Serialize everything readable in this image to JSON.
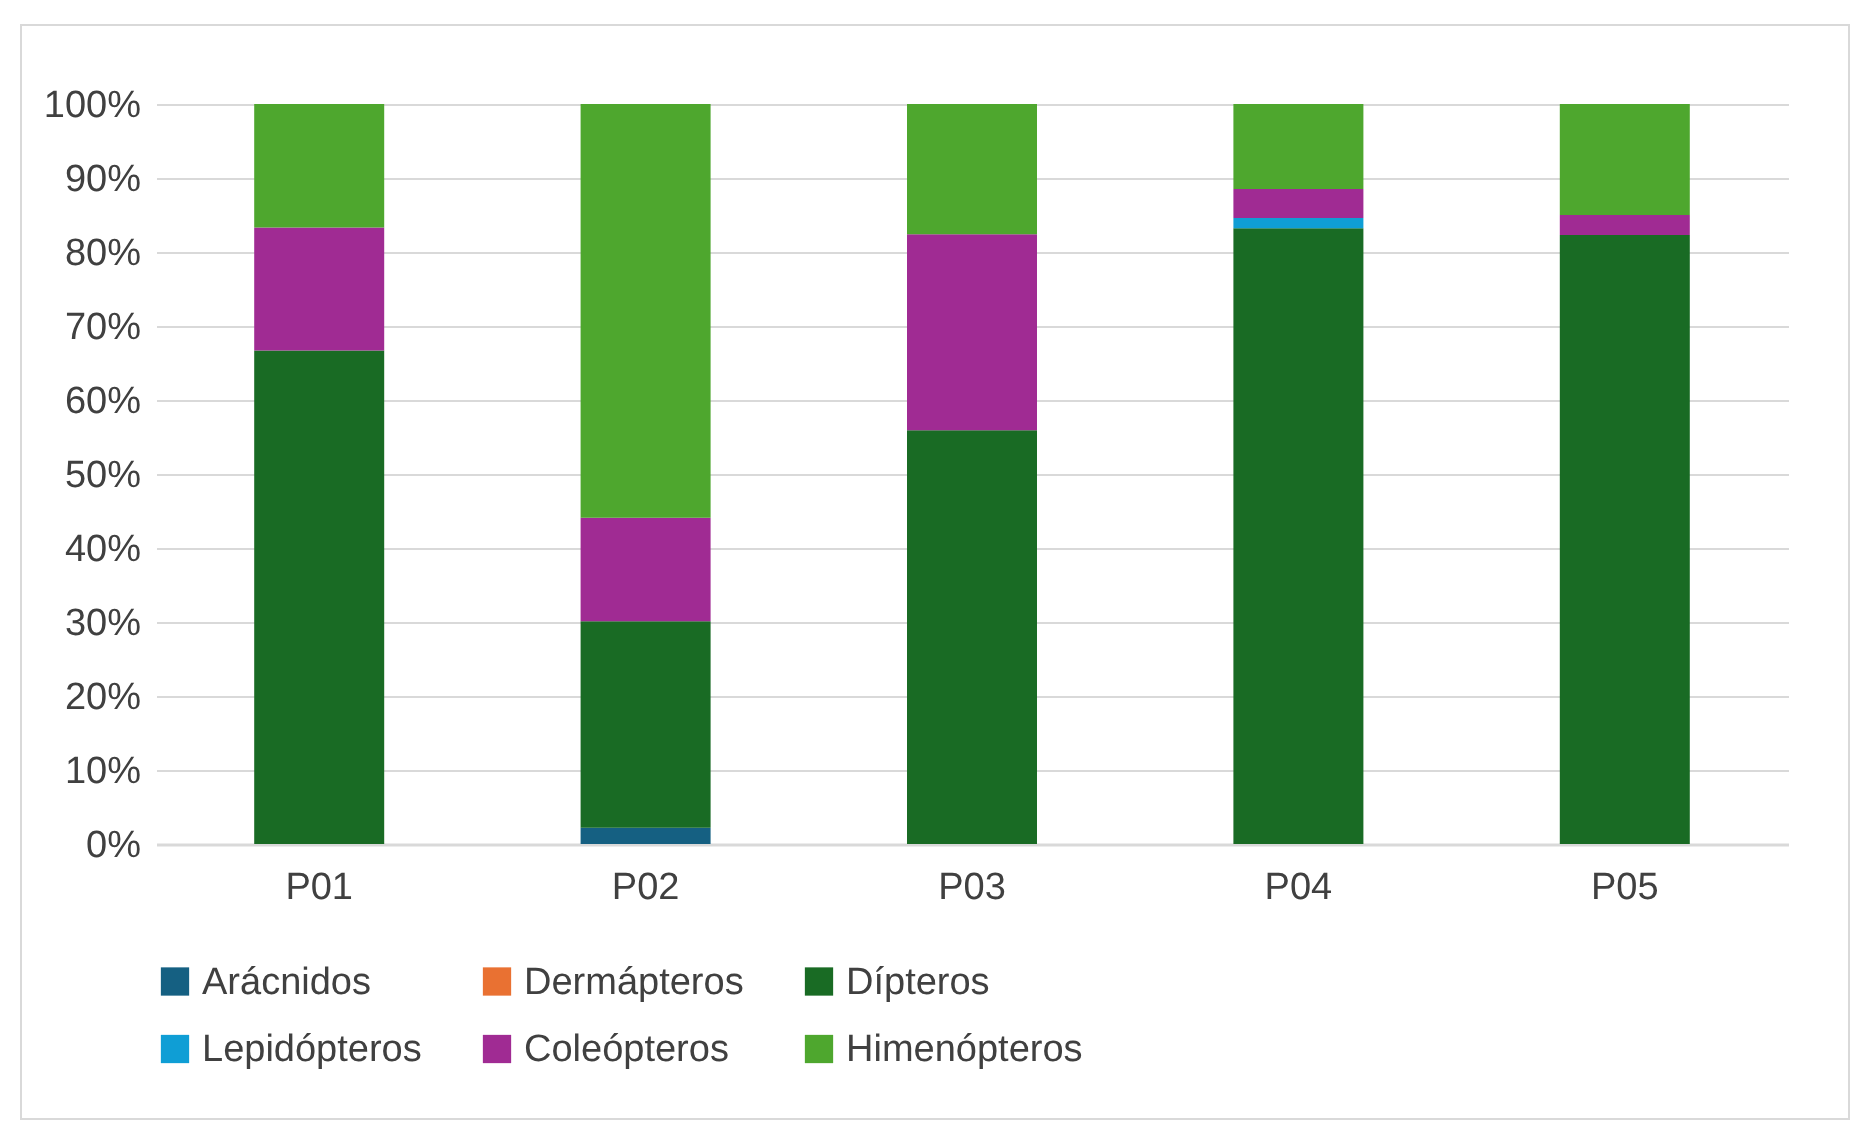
{
  "chart_data": {
    "type": "bar",
    "stacked": true,
    "categories": [
      "P01",
      "P02",
      "P03",
      "P04",
      "P05"
    ],
    "series": [
      {
        "name": "Arácnidos",
        "color": "#156082",
        "values": [
          0,
          2.2,
          0,
          0,
          0
        ]
      },
      {
        "name": "Dermápteros",
        "color": "#e97132",
        "values": [
          0,
          0,
          0,
          0,
          0
        ]
      },
      {
        "name": "Dípteros",
        "color": "#196b24",
        "values": [
          66.7,
          27.9,
          55.9,
          83.2,
          82.3
        ]
      },
      {
        "name": "Lepidópteros",
        "color": "#0f9ed5",
        "values": [
          0,
          0,
          0,
          1.4,
          0
        ]
      },
      {
        "name": "Coleópteros",
        "color": "#a02b93",
        "values": [
          16.6,
          14.0,
          26.5,
          3.9,
          2.7
        ]
      },
      {
        "name": "Himenópteros",
        "color": "#4ea72e",
        "values": [
          16.7,
          55.9,
          17.6,
          11.5,
          15.0
        ]
      }
    ],
    "ylim": [
      0,
      100
    ],
    "yticks": [
      {
        "value": 0,
        "label": "0%"
      },
      {
        "value": 10,
        "label": "10%"
      },
      {
        "value": 20,
        "label": "20%"
      },
      {
        "value": 30,
        "label": "30%"
      },
      {
        "value": 40,
        "label": "40%"
      },
      {
        "value": 50,
        "label": "50%"
      },
      {
        "value": 60,
        "label": "60%"
      },
      {
        "value": 70,
        "label": "70%"
      },
      {
        "value": 80,
        "label": "80%"
      },
      {
        "value": 90,
        "label": "90%"
      },
      {
        "value": 100,
        "label": "100%"
      }
    ],
    "grid": "y",
    "legend": "bottom"
  }
}
